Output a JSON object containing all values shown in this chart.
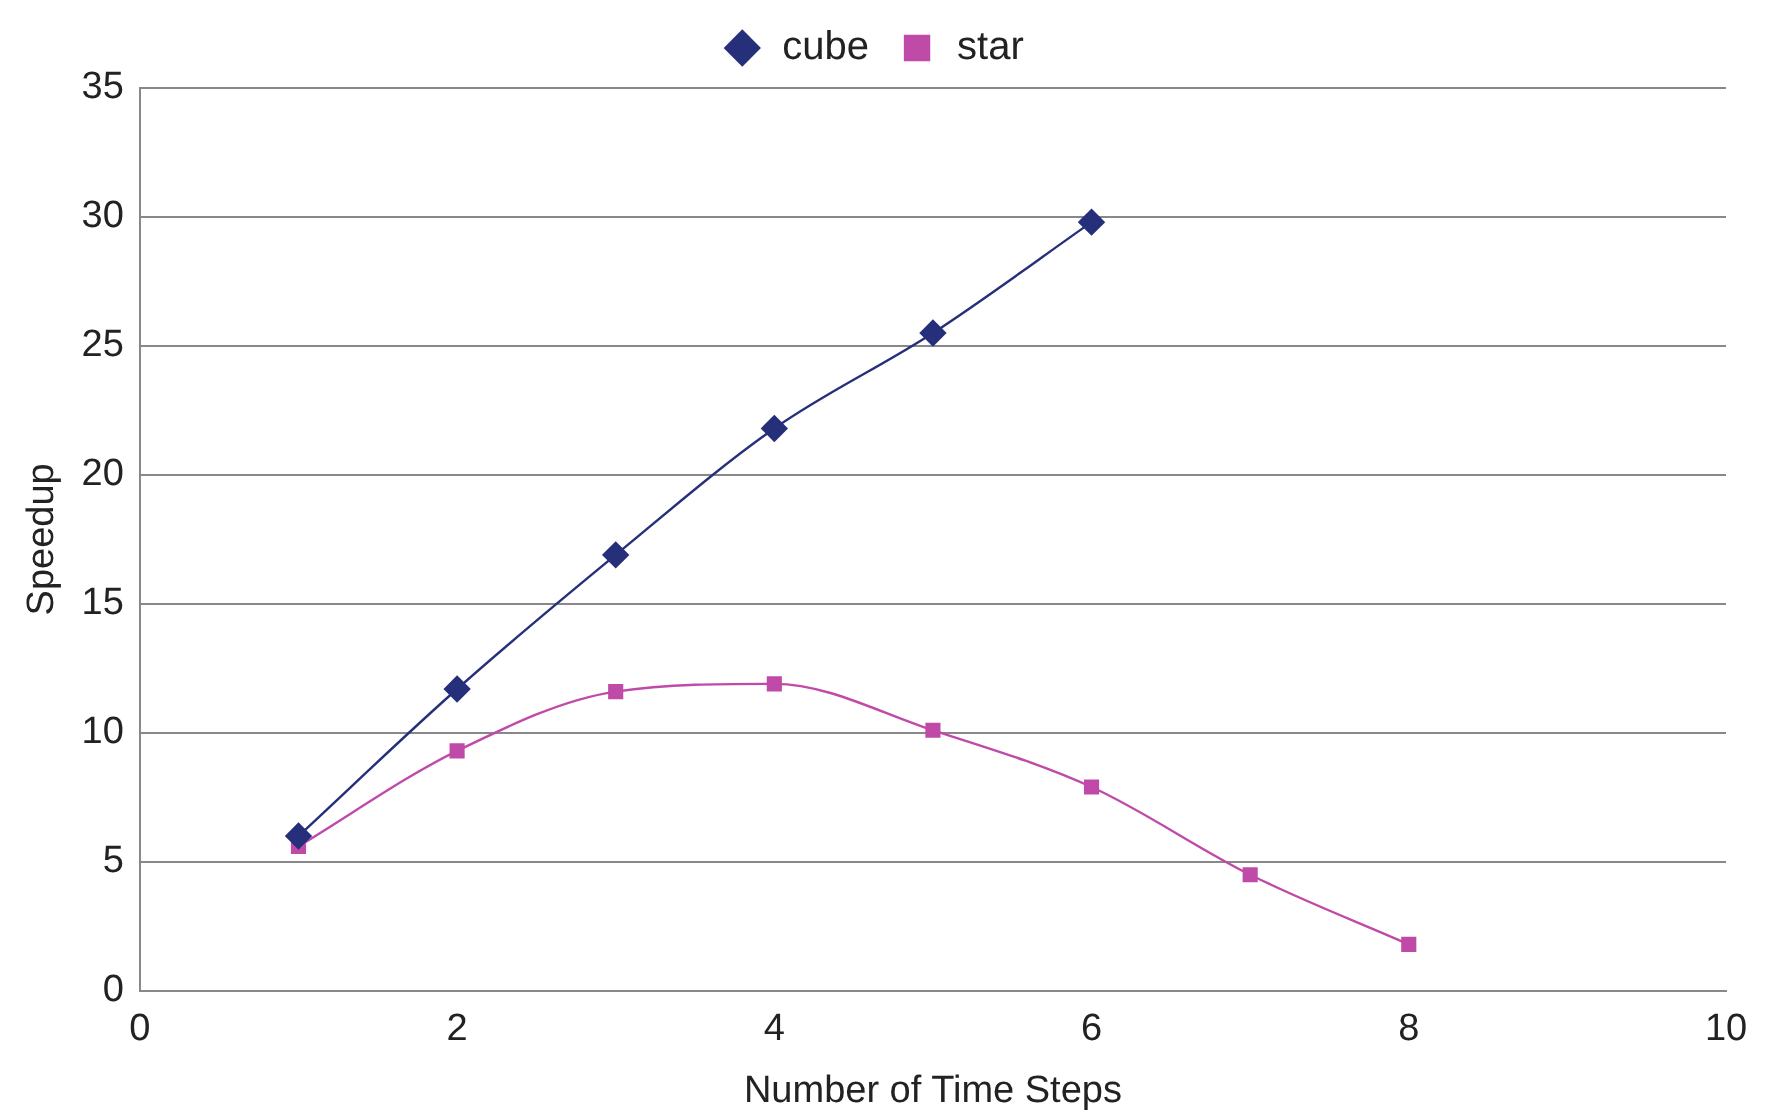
{
  "chart_data": {
    "type": "line",
    "xlabel": "Number of Time Steps",
    "ylabel": "Speedup",
    "xlim": [
      0,
      10
    ],
    "xticks": [
      0,
      2,
      4,
      6,
      8,
      10
    ],
    "ylim": [
      0,
      35
    ],
    "yticks": [
      0,
      5,
      10,
      15,
      20,
      25,
      30,
      35
    ],
    "grid": "y",
    "legend": "top",
    "series": [
      {
        "name": "cube",
        "color": "#262f7a",
        "marker": "diamond",
        "x": [
          1,
          2,
          3,
          4,
          5,
          6
        ],
        "values": [
          6.0,
          11.7,
          16.9,
          21.8,
          25.5,
          29.8
        ]
      },
      {
        "name": "star",
        "color": "#c04aa8",
        "marker": "square",
        "x": [
          1,
          2,
          3,
          4,
          5,
          6,
          7,
          8
        ],
        "values": [
          5.6,
          9.3,
          11.6,
          11.9,
          10.1,
          7.9,
          4.5,
          1.8
        ]
      }
    ]
  }
}
